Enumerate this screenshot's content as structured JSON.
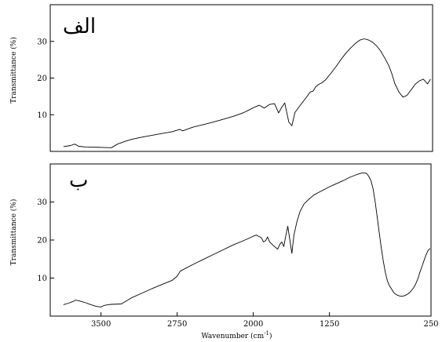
{
  "chart_data": [
    {
      "type": "line",
      "panel_label": "الف",
      "ylabel": "Transmittance (%)",
      "xlabel": "",
      "xlim": [
        4000,
        250
      ],
      "ylim": [
        0,
        40
      ],
      "yticks": [
        10,
        20,
        30
      ],
      "xticks": [],
      "series": [
        {
          "x": [
            3870,
            3800,
            3760,
            3720,
            3650,
            3500,
            3400,
            3340,
            3260,
            3200,
            3100,
            3000,
            2900,
            2800,
            2730,
            2700,
            2600,
            2500,
            2400,
            2300,
            2200,
            2150,
            2100,
            2050,
            2000,
            1950,
            1900,
            1850,
            1800,
            1760,
            1730,
            1700,
            1660,
            1630,
            1600,
            1550,
            1500,
            1450,
            1420,
            1400,
            1370,
            1330,
            1300,
            1250,
            1200,
            1150,
            1100,
            1050,
            1000,
            960,
            920,
            880,
            840,
            800,
            760,
            720,
            680,
            650,
            620,
            580,
            540,
            500,
            460,
            420,
            380,
            340,
            300,
            270
          ],
          "y": [
            1.3,
            1.6,
            2.0,
            1.4,
            1.2,
            1.1,
            1.0,
            2.0,
            2.8,
            3.3,
            3.9,
            4.4,
            4.9,
            5.4,
            6.0,
            5.6,
            6.6,
            7.3,
            8.0,
            8.8,
            9.6,
            10.1,
            10.6,
            11.3,
            12.0,
            12.6,
            11.8,
            12.8,
            13.0,
            10.5,
            12.0,
            13.2,
            8.0,
            7.0,
            10.6,
            12.5,
            14.3,
            16.2,
            16.5,
            17.5,
            18.2,
            18.8,
            19.5,
            21.2,
            23.0,
            25.0,
            26.8,
            28.3,
            29.6,
            30.4,
            30.7,
            30.4,
            29.8,
            28.8,
            27.4,
            25.5,
            23.4,
            21.2,
            18.5,
            16.2,
            14.8,
            15.3,
            16.8,
            18.3,
            19.2,
            19.7,
            18.4,
            19.7
          ]
        }
      ]
    },
    {
      "type": "line",
      "panel_label": "ب",
      "ylabel": "Transmittance (%)",
      "xlabel": "Wavenumber (cm-1)",
      "xlim": [
        4000,
        250
      ],
      "ylim": [
        0,
        40
      ],
      "yticks": [
        10,
        20,
        30
      ],
      "xticks": [
        3500,
        2750,
        2000,
        1250,
        250
      ],
      "series": [
        {
          "x": [
            3870,
            3820,
            3780,
            3750,
            3700,
            3650,
            3600,
            3550,
            3500,
            3470,
            3430,
            3400,
            3300,
            3200,
            3100,
            3000,
            2900,
            2800,
            2750,
            2720,
            2700,
            2600,
            2500,
            2400,
            2300,
            2200,
            2100,
            2050,
            2000,
            1970,
            1950,
            1920,
            1900,
            1880,
            1860,
            1840,
            1800,
            1760,
            1740,
            1720,
            1700,
            1680,
            1660,
            1640,
            1620,
            1600,
            1570,
            1540,
            1500,
            1450,
            1400,
            1350,
            1300,
            1250,
            1200,
            1150,
            1100,
            1050,
            1000,
            960,
            930,
            900,
            880,
            860,
            840,
            820,
            800,
            780,
            760,
            740,
            720,
            700,
            680,
            660,
            640,
            620,
            600,
            580,
            560,
            540,
            520,
            500,
            480,
            460,
            440,
            420,
            400,
            380,
            360,
            340,
            320,
            300,
            280,
            260
          ],
          "y": [
            3.0,
            3.4,
            3.8,
            4.2,
            3.9,
            3.5,
            3.0,
            2.6,
            2.4,
            2.8,
            3.0,
            3.1,
            3.2,
            4.8,
            6.0,
            7.2,
            8.3,
            9.4,
            10.5,
            11.8,
            12.1,
            13.5,
            14.8,
            16.1,
            17.4,
            18.7,
            19.8,
            20.4,
            21.0,
            21.3,
            21.0,
            20.6,
            19.5,
            19.8,
            20.8,
            19.5,
            18.5,
            17.6,
            18.8,
            19.5,
            18.3,
            21.2,
            23.6,
            20.0,
            16.5,
            21.3,
            24.9,
            27.5,
            29.5,
            30.8,
            31.9,
            32.6,
            33.3,
            34.0,
            34.6,
            35.2,
            35.8,
            36.5,
            37.0,
            37.4,
            37.6,
            37.6,
            37.4,
            36.6,
            35.5,
            33.4,
            30.0,
            26.0,
            22.0,
            18.0,
            14.5,
            11.5,
            9.3,
            8.0,
            7.2,
            6.3,
            5.8,
            5.5,
            5.3,
            5.2,
            5.3,
            5.5,
            5.8,
            6.2,
            6.8,
            7.5,
            8.5,
            9.8,
            11.5,
            13.0,
            14.5,
            16.0,
            17.2,
            17.8
          ]
        }
      ]
    }
  ]
}
